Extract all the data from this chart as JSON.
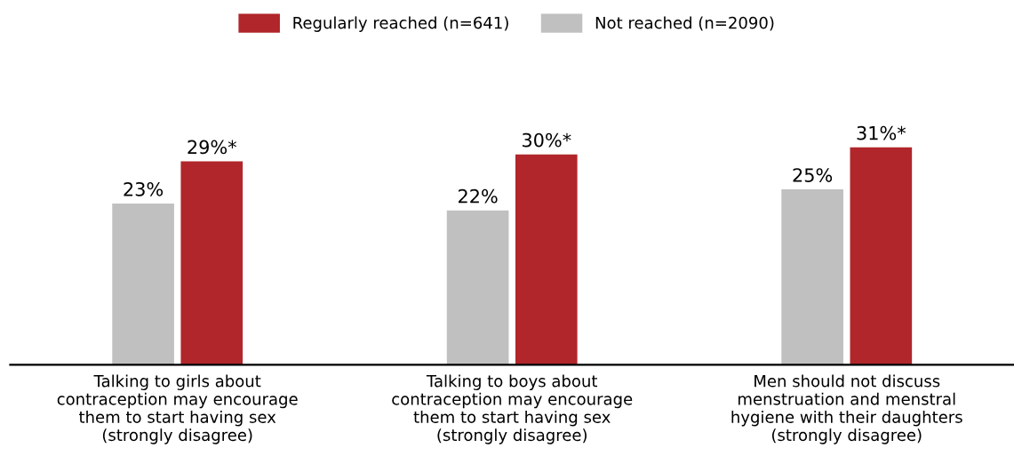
{
  "chart_data": {
    "type": "bar",
    "categories": [
      "Talking to girls about\ncontraception may encourage\nthem to start having sex\n(strongly disagree)",
      "Talking to boys about\ncontraception may encourage\nthem to start having sex\n(strongly disagree)",
      "Men should not discuss\nmenstruation and menstral\nhygiene with their daughters\n(strongly disagree)"
    ],
    "series": [
      {
        "name": "Not reached (n=2090)",
        "color": "#c0c0c0",
        "values": [
          23,
          22,
          25
        ],
        "value_labels": [
          "23%",
          "22%",
          "25%"
        ]
      },
      {
        "name": "Regularly reached (n=641)",
        "color": "#b0262a",
        "values": [
          29,
          30,
          31
        ],
        "value_labels": [
          "29%*",
          "30%*",
          "31%*"
        ]
      }
    ],
    "tick_labels": "x",
    "grid": false,
    "legend": "top"
  }
}
